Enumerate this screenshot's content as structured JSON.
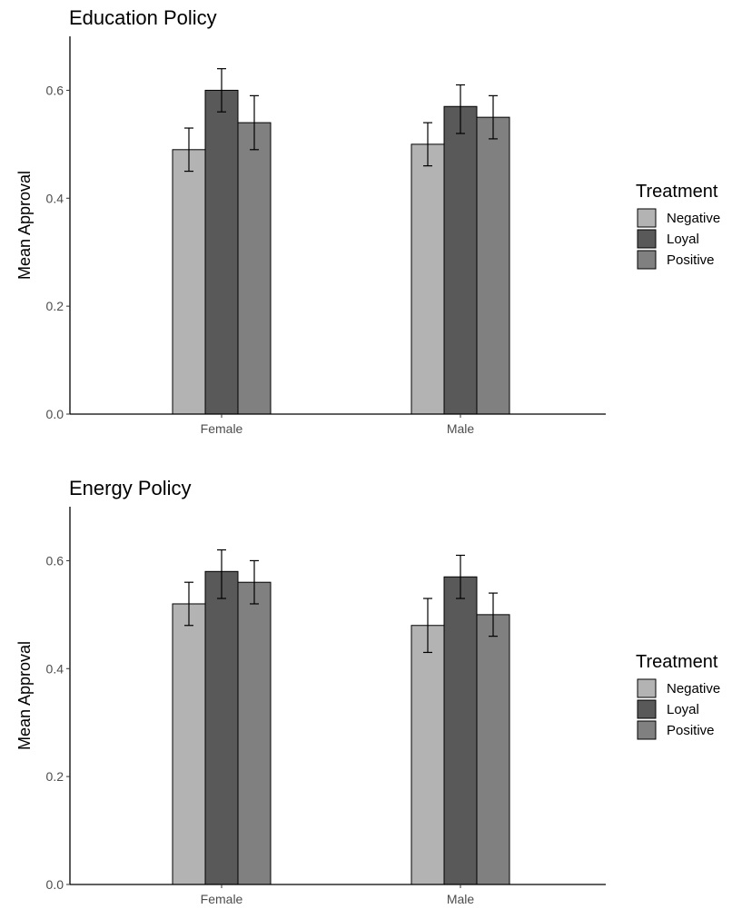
{
  "chart_data": [
    {
      "type": "bar",
      "title": "Education Policy",
      "ylabel": "Mean Approval",
      "xlabel": "",
      "categories": [
        "Female",
        "Male"
      ],
      "ylim": [
        0,
        0.7
      ],
      "yticks": [
        0.0,
        0.2,
        0.4,
        0.6
      ],
      "ytick_labels": [
        "0.0",
        "0.2",
        "0.4",
        "0.6"
      ],
      "series": [
        {
          "name": "Negative",
          "values": [
            0.49,
            0.5
          ],
          "lower": [
            0.45,
            0.46
          ],
          "upper": [
            0.53,
            0.54
          ]
        },
        {
          "name": "Loyal",
          "values": [
            0.6,
            0.57
          ],
          "lower": [
            0.56,
            0.52
          ],
          "upper": [
            0.64,
            0.61
          ]
        },
        {
          "name": "Positive",
          "values": [
            0.54,
            0.55
          ],
          "lower": [
            0.49,
            0.51
          ],
          "upper": [
            0.59,
            0.59
          ]
        }
      ],
      "legend": {
        "title": "Treatment",
        "position": "right"
      },
      "grid": false
    },
    {
      "type": "bar",
      "title": "Energy Policy",
      "ylabel": "Mean Approval",
      "xlabel": "",
      "categories": [
        "Female",
        "Male"
      ],
      "ylim": [
        0,
        0.7
      ],
      "yticks": [
        0.0,
        0.2,
        0.4,
        0.6
      ],
      "ytick_labels": [
        "0.0",
        "0.2",
        "0.4",
        "0.6"
      ],
      "series": [
        {
          "name": "Negative",
          "values": [
            0.52,
            0.48
          ],
          "lower": [
            0.48,
            0.43
          ],
          "upper": [
            0.56,
            0.53
          ]
        },
        {
          "name": "Loyal",
          "values": [
            0.58,
            0.57
          ],
          "lower": [
            0.53,
            0.53
          ],
          "upper": [
            0.62,
            0.61
          ]
        },
        {
          "name": "Positive",
          "values": [
            0.56,
            0.5
          ],
          "lower": [
            0.52,
            0.46
          ],
          "upper": [
            0.6,
            0.54
          ]
        }
      ],
      "legend": {
        "title": "Treatment",
        "position": "right"
      },
      "grid": false
    }
  ],
  "colors": {
    "Negative": "#b3b3b3",
    "Loyal": "#595959",
    "Positive": "#808080"
  }
}
